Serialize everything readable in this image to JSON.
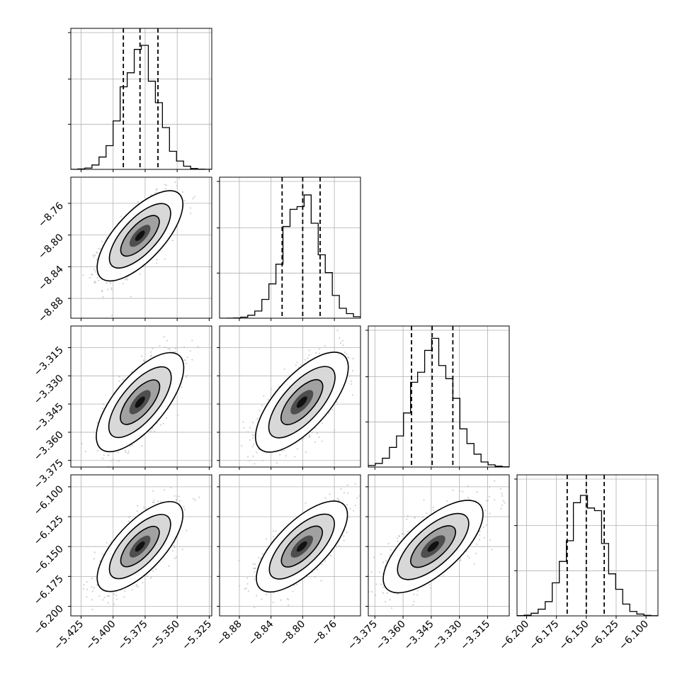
{
  "chart_data": {
    "type": "corner",
    "parameters": [
      {
        "range": [
          -5.433,
          -5.323
        ],
        "ticks": [
          -5.425,
          -5.4,
          -5.375,
          -5.35,
          -5.325
        ],
        "tick_labels": [
          "−5.425",
          "−5.400",
          "−5.375",
          "−5.350",
          "−5.325"
        ],
        "quantiles": [
          -5.392,
          -5.379,
          -5.365
        ],
        "hist_peak": -5.379,
        "hist_sigma": 0.0135
      },
      {
        "range": [
          -8.905,
          -8.727
        ],
        "ticks": [
          -8.88,
          -8.84,
          -8.8,
          -8.76
        ],
        "tick_labels": [
          "−8.88",
          "−8.84",
          "−8.80",
          "−8.76"
        ],
        "quantiles": [
          -8.826,
          -8.8,
          -8.778
        ],
        "hist_peak": -8.801,
        "hist_sigma": 0.0235
      },
      {
        "range": [
          -3.3785,
          -3.3035
        ],
        "ticks": [
          -3.375,
          -3.36,
          -3.345,
          -3.33,
          -3.315
        ],
        "tick_labels": [
          "−3.375",
          "−3.360",
          "−3.345",
          "−3.330",
          "−3.315"
        ],
        "quantiles": [
          -3.3555,
          -3.3445,
          -3.3335
        ],
        "hist_peak": -3.344,
        "hist_sigma": 0.011
      },
      {
        "range": [
          -6.208,
          -6.09
        ],
        "ticks": [
          -6.2,
          -6.175,
          -6.15,
          -6.125,
          -6.1
        ],
        "tick_labels": [
          "−6.200",
          "−6.175",
          "−6.150",
          "−6.125",
          "−6.100"
        ],
        "quantiles": [
          -6.166,
          -6.15,
          -6.135
        ],
        "hist_peak": -6.15,
        "hist_sigma": 0.0155
      }
    ],
    "correlation": 0.7,
    "samples_per_panel": 1200,
    "grid": true,
    "colors": {
      "line": "#000000",
      "points": "#bdbdbd",
      "grid": "#b0b0b0"
    }
  }
}
